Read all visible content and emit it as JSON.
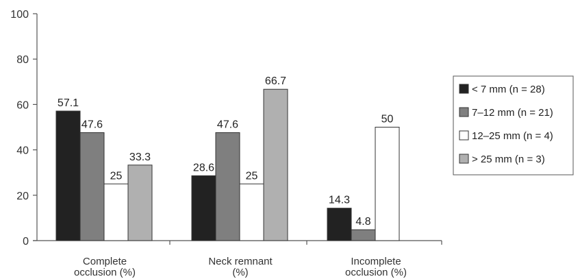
{
  "chart_data": {
    "type": "bar",
    "title": "",
    "xlabel": "",
    "ylabel": "",
    "ylim": [
      0,
      100
    ],
    "yticks": [
      0,
      20,
      40,
      60,
      80,
      100
    ],
    "grid": false,
    "legend_position": "right",
    "categories": [
      [
        "Complete",
        "occlusion (%)"
      ],
      [
        "Neck remnant",
        "(%)"
      ],
      [
        "Incomplete",
        "occlusion (%)"
      ]
    ],
    "series": [
      {
        "name": "< 7 mm (n = 28)",
        "color": "#222222",
        "values": [
          57.1,
          28.6,
          14.3
        ],
        "labels": [
          "57.1",
          "28.6",
          "14.3"
        ]
      },
      {
        "name": "7–12 mm (n = 21)",
        "color": "#7f7f7f",
        "values": [
          47.6,
          47.6,
          4.8
        ],
        "labels": [
          "47.6",
          "47.6",
          "4.8"
        ]
      },
      {
        "name": "12–25 mm (n = 4)",
        "color": "#ffffff",
        "values": [
          25,
          25,
          50
        ],
        "labels": [
          "25",
          "25",
          "50"
        ]
      },
      {
        "name": "> 25 mm (n = 3)",
        "color": "#b0b0b0",
        "values": [
          33.3,
          66.7,
          null
        ],
        "labels": [
          "33.3",
          "66.7",
          null
        ]
      }
    ]
  }
}
